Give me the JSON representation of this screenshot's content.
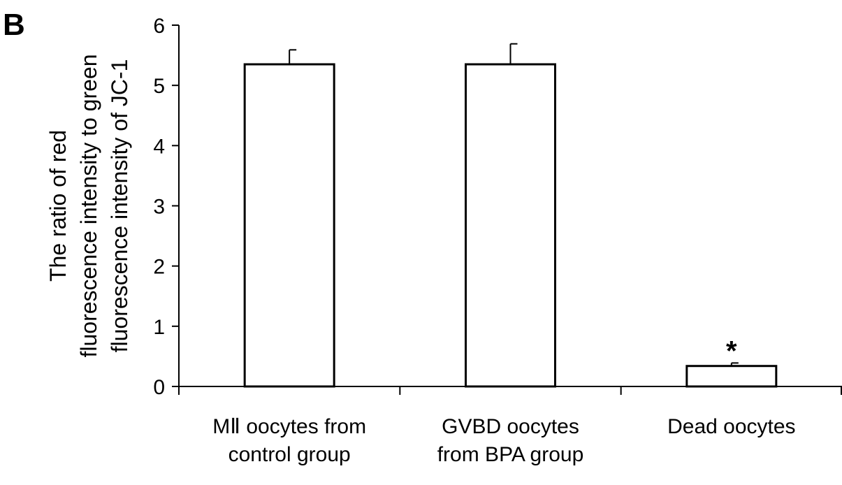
{
  "panel_label": "B",
  "chart_data": {
    "type": "bar",
    "categories": [
      [
        "MⅡ oocytes from",
        "control group"
      ],
      [
        "GVBD oocytes",
        "from BPA group"
      ],
      [
        "Dead oocytes"
      ]
    ],
    "values": [
      5.35,
      5.35,
      0.34
    ],
    "errors": [
      0.24,
      0.34,
      0.05
    ],
    "annotations": [
      "",
      "",
      "*"
    ],
    "ylabel": [
      "The ratio of red",
      "fluorescence intensity to green",
      "fluorescence intensity of JC-1"
    ],
    "ylim": [
      0,
      6
    ],
    "yticks": [
      "0",
      "1",
      "2",
      "3",
      "4",
      "5",
      "6"
    ],
    "grid": false,
    "bar_fill": "#ffffff",
    "bar_stroke": "#000000"
  }
}
